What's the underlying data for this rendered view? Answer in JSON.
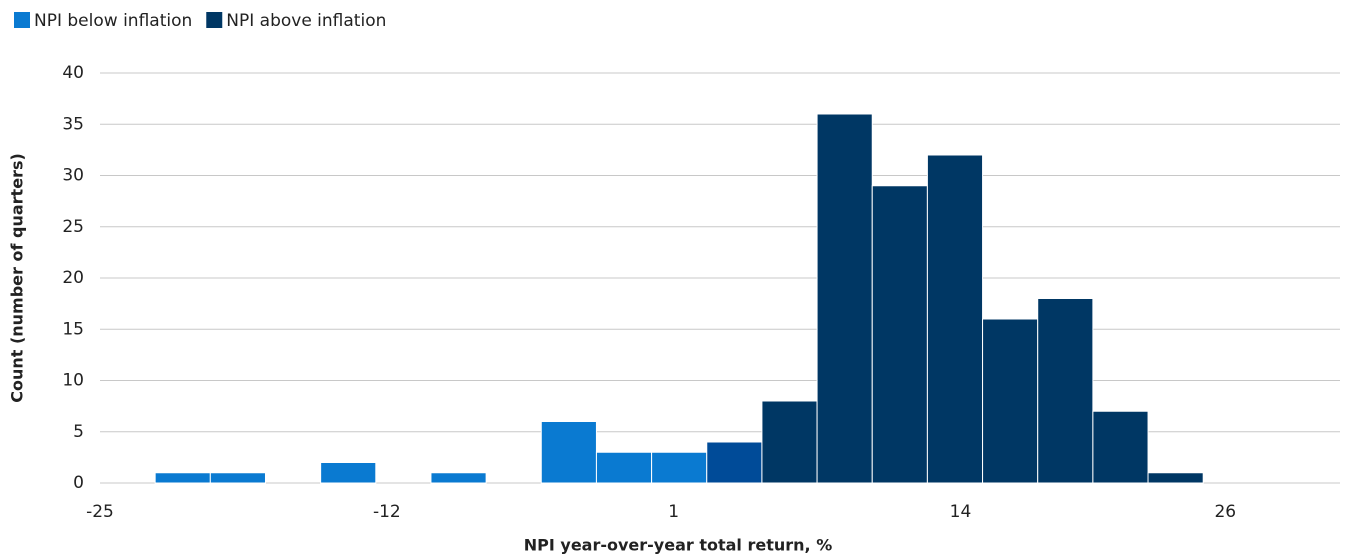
{
  "chart_data": {
    "type": "histogram",
    "xlabel": "NPI year-over-year total return, %",
    "ylabel": "Count (number of quarters)",
    "bins": [
      -22.5,
      -20,
      -17.5,
      -15,
      -12.5,
      -10,
      -7.5,
      -5,
      -2.5,
      0,
      2.5,
      5,
      7.5,
      10,
      12.5,
      15,
      17.5,
      20,
      22.5,
      25
    ],
    "series": [
      {
        "name": "NPI below inflation",
        "color": "#0a7ad1",
        "values": [
          1,
          1,
          0,
          2,
          0,
          1,
          0,
          6,
          3,
          3,
          0,
          0,
          0,
          0,
          0,
          0,
          0,
          0,
          0
        ]
      },
      {
        "name": "NPI above inflation",
        "color": "#003764",
        "values": [
          0,
          0,
          0,
          0,
          0,
          0,
          0,
          0,
          0,
          0,
          4,
          8,
          36,
          29,
          32,
          16,
          18,
          7,
          1
        ],
        "colors": [
          "#003764",
          "#003764",
          "#003764",
          "#003764",
          "#003764",
          "#003764",
          "#003764",
          "#003764",
          "#003764",
          "#003764",
          "#004b98",
          "#003764",
          "#003764",
          "#003764",
          "#003764",
          "#003764",
          "#003764",
          "#003764",
          "#003764"
        ]
      }
    ],
    "xlim": [
      -25,
      31.2
    ],
    "xticks": [
      -25,
      -12,
      1,
      14,
      26
    ],
    "ylim": [
      0,
      40
    ],
    "yticks": [
      0,
      5,
      10,
      15,
      20,
      25,
      30,
      35,
      40
    ],
    "grid": true,
    "legend": "top-left"
  }
}
